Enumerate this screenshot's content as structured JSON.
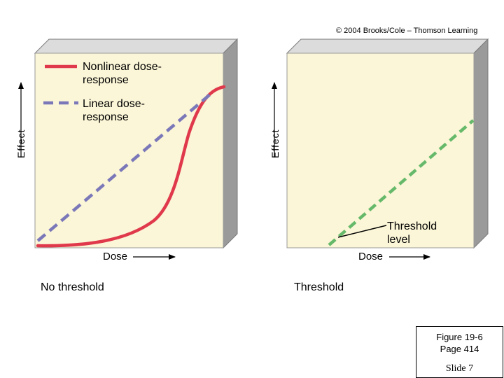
{
  "copyright": "© 2004 Brooks/Cole – Thomson Learning",
  "colors": {
    "panel_face": "#fbf6d7",
    "panel_top": "#dcdcdc",
    "panel_side": "#9a9a9a",
    "nonlinear": "#e0394c",
    "linear": "#7b78b9",
    "threshold": "#66b96a"
  },
  "left_panel": {
    "y_axis_label": "Effect",
    "x_axis_label": "Dose",
    "caption": "No threshold",
    "legend": [
      {
        "label": "Nonlinear dose-response",
        "style": "solid"
      },
      {
        "label": "Linear dose-response",
        "style": "dashed"
      }
    ]
  },
  "right_panel": {
    "y_axis_label": "Effect",
    "x_axis_label": "Dose",
    "caption": "Threshold",
    "threshold_label": "Threshold level"
  },
  "figure_box": {
    "line1": "Figure 19-6",
    "line2": "Page 414",
    "slide": "Slide 7"
  }
}
